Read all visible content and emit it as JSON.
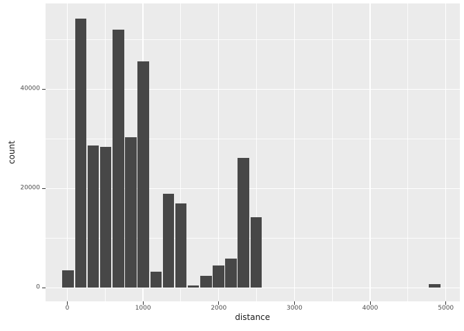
{
  "style": {
    "page_bg": "#FFFFFF",
    "panel_bg": "#EBEBEB",
    "grid_color": "#FFFFFF",
    "bar_color": "#474747",
    "tick_mark_color": "#333333",
    "axis_text_color": "#4D4D4D",
    "axis_title_color": "#1A1A1A"
  },
  "chart_data": {
    "type": "bar",
    "subtype": "histogram",
    "title": "",
    "xlabel": "distance",
    "ylabel": "count",
    "bin_width": 165.5,
    "bins": [
      {
        "center": 11,
        "count": 3500
      },
      {
        "center": 176,
        "count": 54200
      },
      {
        "center": 342,
        "count": 28700
      },
      {
        "center": 508,
        "count": 28400
      },
      {
        "center": 673,
        "count": 52000
      },
      {
        "center": 839,
        "count": 30300
      },
      {
        "center": 1004,
        "count": 45600
      },
      {
        "center": 1170,
        "count": 3250
      },
      {
        "center": 1335,
        "count": 18900
      },
      {
        "center": 1501,
        "count": 17000
      },
      {
        "center": 1666,
        "count": 450
      },
      {
        "center": 1832,
        "count": 2400
      },
      {
        "center": 1997,
        "count": 4550
      },
      {
        "center": 2163,
        "count": 5900
      },
      {
        "center": 2328,
        "count": 26100
      },
      {
        "center": 2494,
        "count": 14200
      },
      {
        "center": 4852,
        "count": 700
      }
    ],
    "x_ticks": [
      0,
      1000,
      2000,
      3000,
      4000,
      5000
    ],
    "y_ticks": [
      0,
      20000,
      40000
    ],
    "x_minor_gridlines": [
      500,
      1500,
      2500,
      3500,
      4500
    ],
    "y_minor_gridlines": [
      10000,
      30000,
      50000
    ],
    "xlim": [
      -292,
      5185
    ],
    "ylim": [
      -2736,
      57222
    ],
    "grid": "major+minor white on grey panel",
    "legend_position": "none"
  }
}
